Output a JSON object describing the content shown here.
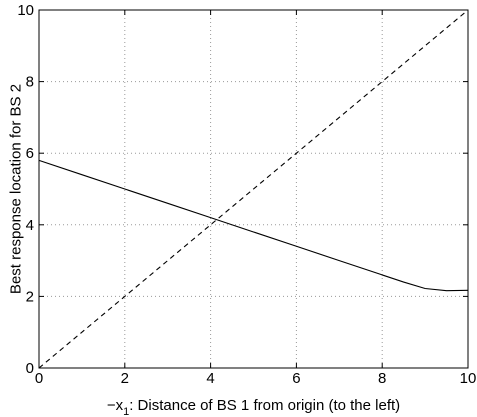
{
  "chart_data": {
    "type": "line",
    "title": "",
    "xlabel": "−x₁: Distance of BS 1 from origin (to the left)",
    "xlabel_parts": {
      "prefix": "−x",
      "subscript": "1",
      "rest": ": Distance of BS 1 from origin (to the left)"
    },
    "ylabel": "Best response location for BS 2",
    "xlim": [
      0,
      10
    ],
    "ylim": [
      0,
      10
    ],
    "xticks": [
      0,
      2,
      4,
      6,
      8,
      10
    ],
    "yticks": [
      0,
      2,
      4,
      6,
      8,
      10
    ],
    "grid": true,
    "series": [
      {
        "style": "solid",
        "x": [
          0,
          1,
          2,
          3,
          4,
          5,
          6,
          7,
          7.5,
          8,
          8.5,
          9,
          9.5,
          10
        ],
        "y": [
          5.8,
          5.4,
          5.0,
          4.6,
          4.2,
          3.8,
          3.4,
          3.0,
          2.8,
          2.6,
          2.4,
          2.22,
          2.16,
          2.17
        ]
      },
      {
        "style": "dashed",
        "x": [
          0,
          10
        ],
        "y": [
          0,
          10
        ]
      }
    ]
  }
}
